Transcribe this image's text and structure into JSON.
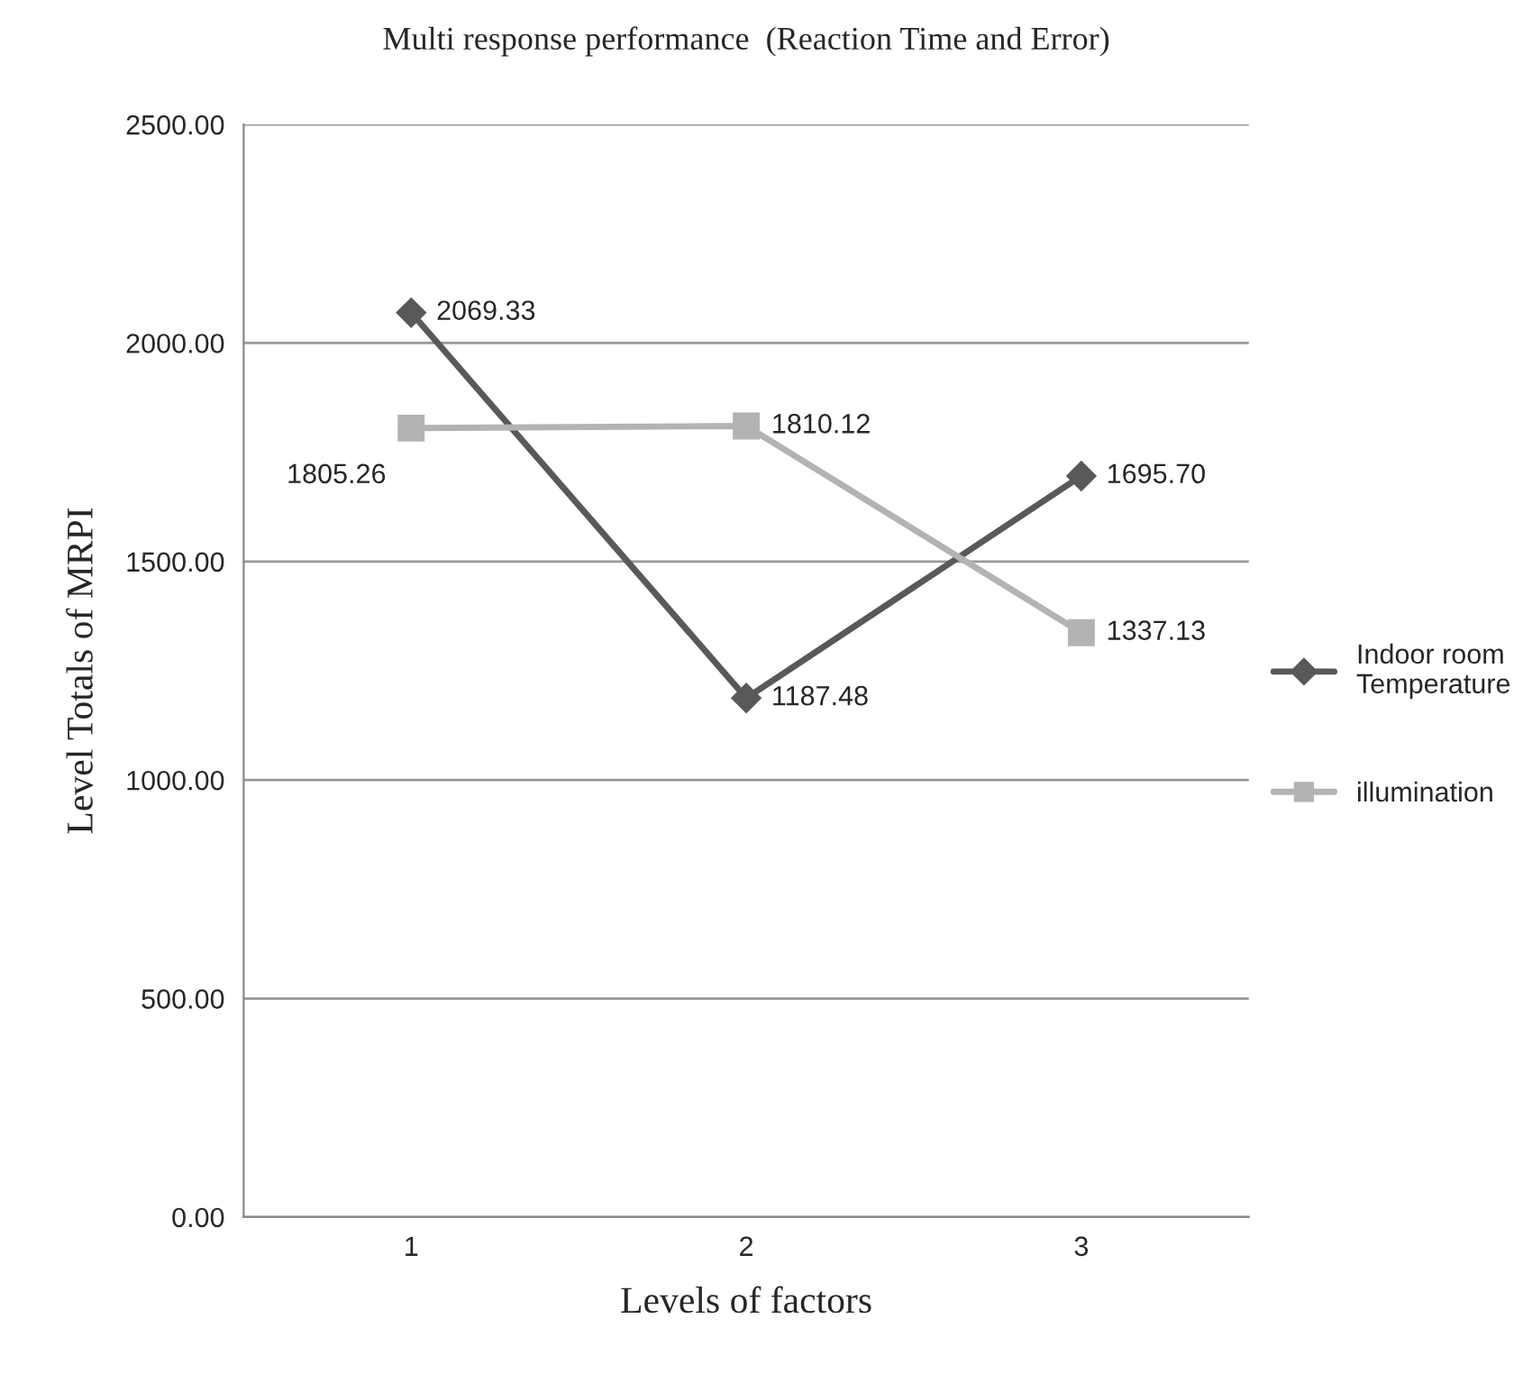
{
  "chart_data": {
    "type": "line",
    "title": "Multi response performance  (Reaction Time and Error)",
    "xlabel": "Levels of factors",
    "ylabel": "Level Totals of MRPI",
    "categories": [
      "1",
      "2",
      "3"
    ],
    "series": [
      {
        "name": "Indoor room\nTemperature",
        "color": "#595959",
        "marker": "diamond",
        "values": [
          2069.33,
          1187.48,
          1695.7
        ],
        "value_labels": [
          "2069.33",
          "1187.48",
          "1695.70"
        ]
      },
      {
        "name": "illumination",
        "color": "#b3b3b3",
        "marker": "square",
        "values": [
          1805.26,
          1810.12,
          1337.13
        ],
        "value_labels": [
          "1805.26",
          "1810.12",
          "1337.13"
        ]
      }
    ],
    "ylim": [
      0,
      2500
    ],
    "yticks": [
      {
        "value": 0,
        "label": "0.00"
      },
      {
        "value": 500,
        "label": "500.00"
      },
      {
        "value": 1000,
        "label": "1000.00"
      },
      {
        "value": 1500,
        "label": "1500.00"
      },
      {
        "value": 2000,
        "label": "2000.00"
      },
      {
        "value": 2500,
        "label": "2500.00"
      }
    ],
    "grid": "y",
    "legend": "right",
    "line_style": "solid"
  }
}
